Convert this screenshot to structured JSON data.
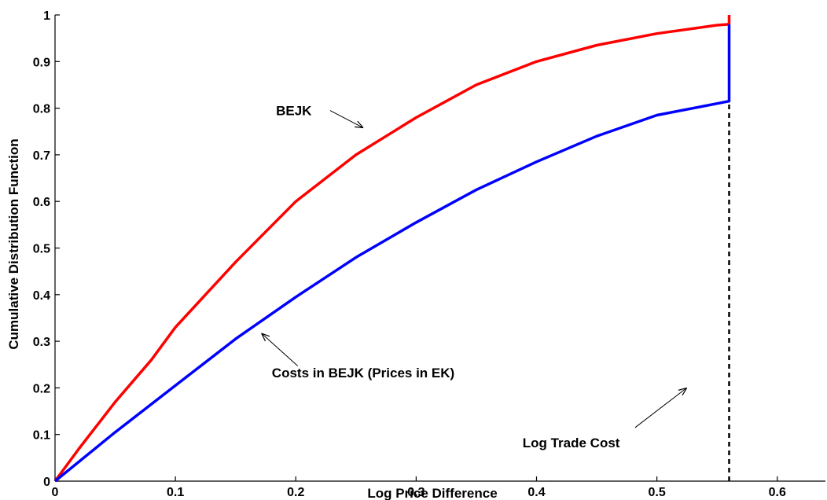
{
  "chart_data": {
    "type": "line",
    "xlabel": "Log Price Difference",
    "ylabel": "Cumulative Distribution Function",
    "xlim": [
      0,
      0.64
    ],
    "ylim": [
      0,
      1
    ],
    "xticks": [
      "0",
      "0.1",
      "0.2",
      "0.3",
      "0.4",
      "0.5",
      "0.6"
    ],
    "yticks": [
      "0",
      "0.1",
      "0.2",
      "0.3",
      "0.4",
      "0.5",
      "0.6",
      "0.7",
      "0.8",
      "0.9",
      "1"
    ],
    "grid": false,
    "series": [
      {
        "color": "#ff0000",
        "x": [
          0,
          0.02,
          0.05,
          0.08,
          0.1,
          0.15,
          0.2,
          0.25,
          0.3,
          0.35,
          0.4,
          0.45,
          0.5,
          0.55,
          0.56,
          0.56
        ],
        "y": [
          0,
          0.07,
          0.17,
          0.26,
          0.33,
          0.47,
          0.6,
          0.7,
          0.78,
          0.85,
          0.9,
          0.935,
          0.96,
          0.978,
          0.98,
          1.0
        ]
      },
      {
        "color": "#0000ff",
        "x": [
          0,
          0.05,
          0.1,
          0.15,
          0.2,
          0.25,
          0.3,
          0.35,
          0.4,
          0.45,
          0.5,
          0.55,
          0.56,
          0.56
        ],
        "y": [
          0,
          0.105,
          0.205,
          0.305,
          0.395,
          0.48,
          0.555,
          0.625,
          0.685,
          0.74,
          0.785,
          0.81,
          0.815,
          0.98
        ]
      }
    ],
    "trade_cost_line": {
      "x": 0.56,
      "y_from": 0,
      "y_to": 0.815,
      "color": "#000000",
      "style": "dashed"
    },
    "annotations": [
      {
        "label": "BEJK",
        "text_x": 0.31,
        "text_y": 0.795,
        "arrow_from": [
          0.357,
          0.795
        ],
        "arrow_to": [
          0.4,
          0.758
        ]
      },
      {
        "label": "Costs in BEJK (Prices in EK)",
        "text_x": 0.4,
        "text_y": 0.233,
        "arrow_from": [
          0.315,
          0.247
        ],
        "arrow_to": [
          0.268,
          0.317
        ]
      },
      {
        "label": "Log Trade Cost",
        "text_x": 0.67,
        "text_y": 0.083,
        "arrow_from": [
          0.753,
          0.115
        ],
        "arrow_to": [
          0.82,
          0.2
        ]
      }
    ]
  }
}
